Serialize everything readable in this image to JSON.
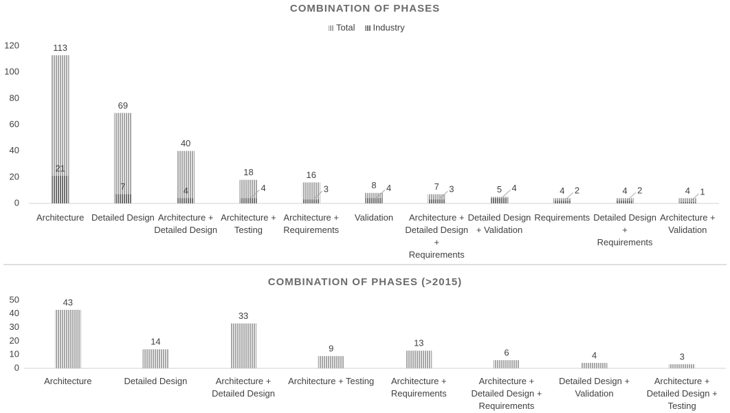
{
  "chart_data": [
    {
      "type": "bar",
      "title": "COMBINATION OF PHASES",
      "categories": [
        "Architecture",
        "Detailed Design",
        "Architecture + Detailed Design",
        "Architecture + Testing",
        "Architecture + Requirements",
        "Validation",
        "Architecture + Detailed Design + Requirements",
        "Detailed Design + Validation",
        "Requirements",
        "Detailed Design + Requirements",
        "Architecture + Validation"
      ],
      "series": [
        {
          "name": "Total",
          "color": "#a6a6a6",
          "values": [
            113,
            69,
            40,
            18,
            16,
            8,
            7,
            5,
            4,
            4,
            4
          ]
        },
        {
          "name": "Industry",
          "color": "#6e6e6e",
          "values": [
            21,
            7,
            4,
            4,
            3,
            4,
            3,
            4,
            2,
            2,
            1
          ]
        }
      ],
      "ylim": [
        0,
        120
      ],
      "yticks": [
        0,
        20,
        40,
        60,
        80,
        100,
        120
      ],
      "legend": "top"
    },
    {
      "type": "bar",
      "title": "COMBINATION OF PHASES (>2015)",
      "categories": [
        "Architecture",
        "Detailed Design",
        "Architecture + Detailed Design",
        "Architecture + Testing",
        "Architecture + Requirements",
        "Architecture + Detailed Design + Requirements",
        "Detailed Design + Validation",
        "Architecture + Detailed Design + Testing"
      ],
      "series": [
        {
          "name": "Total",
          "color": "#a6a6a6",
          "values": [
            43,
            14,
            33,
            9,
            13,
            6,
            4,
            3
          ]
        }
      ],
      "ylim": [
        0,
        50
      ],
      "yticks": [
        0,
        10,
        20,
        30,
        40,
        50
      ]
    }
  ]
}
